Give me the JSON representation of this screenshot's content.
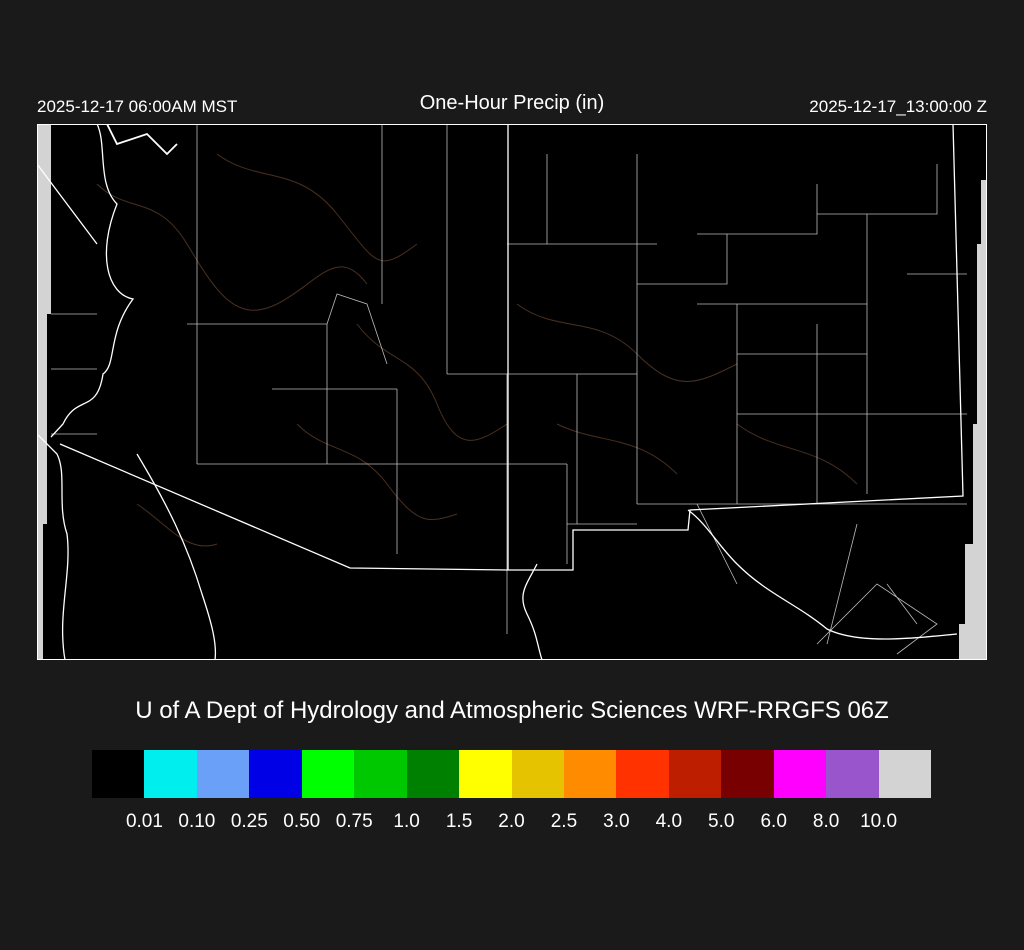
{
  "header": {
    "title": "One-Hour Precip (in)",
    "local_time": "2025-12-17 06:00AM MST",
    "valid_time": "2025-12-17_13:00:00 Z"
  },
  "credit": "U of A Dept of Hydrology and Atmospheric Sciences WRF-RRGFS 06Z",
  "map": {
    "region": "Arizona / New Mexico / West Texas",
    "background_color": "#000000",
    "boundary_color": "#ffffff",
    "county_line_color": "#cccccc",
    "terrain_contour_color": "#5a3a22",
    "no_data_color": "#d3d3d3",
    "precip_shown": "none"
  },
  "colorbar": {
    "colors": [
      "#000000",
      "#00eeee",
      "#6aa0f8",
      "#0000e6",
      "#00ff00",
      "#00c800",
      "#008000",
      "#ffff00",
      "#e6c300",
      "#ff8c00",
      "#ff3200",
      "#be1e00",
      "#780000",
      "#ff00ff",
      "#9955cc",
      "#d3d3d3"
    ],
    "labels": [
      "0.01",
      "0.10",
      "0.25",
      "0.50",
      "0.75",
      "1.0",
      "1.5",
      "2.0",
      "2.5",
      "3.0",
      "4.0",
      "5.0",
      "6.0",
      "8.0",
      "10.0"
    ]
  }
}
